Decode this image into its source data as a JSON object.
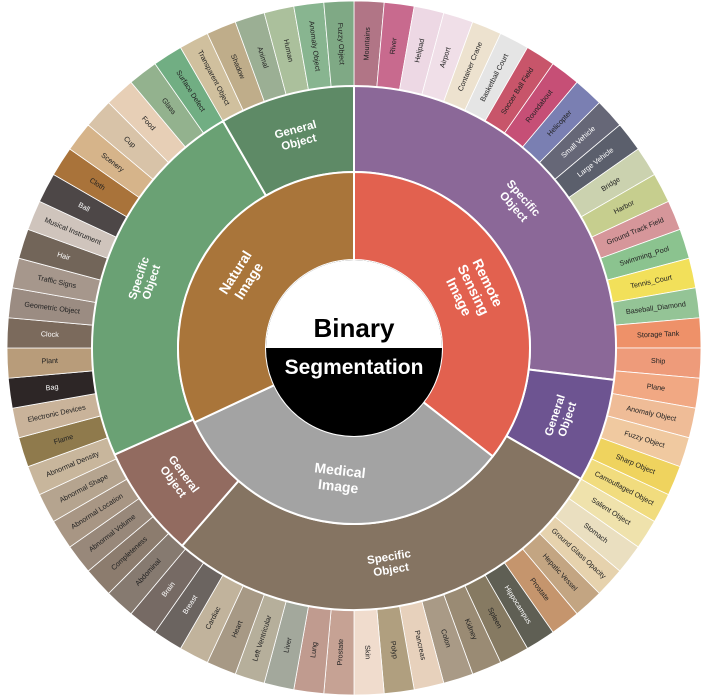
{
  "chart_data": {
    "type": "sunburst",
    "center": {
      "title_top": "Binary",
      "title_bottom": "Segmentation"
    },
    "rings": {
      "inner": [
        {
          "name": "Remote Sensing Image",
          "color": "#E2614F",
          "from": 0,
          "to": 128
        },
        {
          "name": "Medical Image",
          "color": "#A3A3A3",
          "from": 128,
          "to": 245
        },
        {
          "name": "Natural Image",
          "color": "#A9753A",
          "from": 245,
          "to": 360
        }
      ],
      "middle": [
        {
          "name": "Specific Object",
          "color": "#8B6898",
          "from": 0,
          "to": 97
        },
        {
          "name": "General Object",
          "color": "#6D5491",
          "from": 97,
          "to": 120
        },
        {
          "name": "Specific Object",
          "color": "#857462",
          "from": 120,
          "to": 221
        },
        {
          "name": "General Object",
          "color": "#926B60",
          "from": 221,
          "to": 246
        },
        {
          "name": "Specific Object",
          "color": "#6AA174",
          "from": 246,
          "to": 330
        },
        {
          "name": "General Object",
          "color": "#5E8A66",
          "from": 330,
          "to": 360
        }
      ],
      "outer": [
        {
          "name": "Mountains",
          "color": "#B17586",
          "from": 0,
          "to": 5
        },
        {
          "name": "River",
          "color": "#C86A8E",
          "from": 5,
          "to": 10
        },
        {
          "name": "Helipad",
          "color": "#EDD8E4",
          "from": 10,
          "to": 15
        },
        {
          "name": "Airport",
          "color": "#F0DFE8",
          "from": 15,
          "to": 20
        },
        {
          "name": "Container Crane",
          "color": "#EDE2CF",
          "from": 20,
          "to": 25
        },
        {
          "name": "Basketball Court",
          "color": "#E5E5E5",
          "from": 25,
          "to": 30
        },
        {
          "name": "Soccer Ball Field",
          "color": "#C8556A",
          "from": 30,
          "to": 35
        },
        {
          "name": "Roundabout",
          "color": "#C64F76",
          "from": 35,
          "to": 40
        },
        {
          "name": "Helicopter",
          "color": "#7A7FB2",
          "from": 40,
          "to": 45
        },
        {
          "name": "Small Vehicle",
          "color": "#666777",
          "from": 45,
          "to": 50
        },
        {
          "name": "Large Vehicle",
          "color": "#5B5F6C",
          "from": 50,
          "to": 55
        },
        {
          "name": "Bridge",
          "color": "#CBD2AF",
          "from": 55,
          "to": 60
        },
        {
          "name": "Harbor",
          "color": "#C6CE8E",
          "from": 60,
          "to": 65
        },
        {
          "name": "Ground Track Field",
          "color": "#D6969A",
          "from": 65,
          "to": 70
        },
        {
          "name": "Swimming_Pool",
          "color": "#8BC38F",
          "from": 70,
          "to": 75
        },
        {
          "name": "Tennis_Court",
          "color": "#F2E05A",
          "from": 75,
          "to": 80
        },
        {
          "name": "Baseball_Diamond",
          "color": "#94C496",
          "from": 80,
          "to": 85
        },
        {
          "name": "Storage Tank",
          "color": "#EE9169",
          "from": 85,
          "to": 90
        },
        {
          "name": "Ship",
          "color": "#EE9B7A",
          "from": 90,
          "to": 95
        },
        {
          "name": "Plane",
          "color": "#F1A883",
          "from": 95,
          "to": 100
        },
        {
          "name": "Anomaly Object",
          "color": "#EFBC97",
          "from": 100,
          "to": 105
        },
        {
          "name": "Fuzzy Object",
          "color": "#F0C9A0",
          "from": 105,
          "to": 110
        },
        {
          "name": "Sharp Object",
          "color": "#EFD35E",
          "from": 110,
          "to": 115
        },
        {
          "name": "Camouflaged Object",
          "color": "#F1DC7E",
          "from": 115,
          "to": 120
        },
        {
          "name": "Salient Object",
          "color": "#EFE2AC",
          "from": 120,
          "to": 125
        },
        {
          "name": "Stomach",
          "color": "#EADFC0",
          "from": 125,
          "to": 130
        },
        {
          "name": "Ground Glass Opacity",
          "color": "#E6D2AD",
          "from": 130,
          "to": 135
        },
        {
          "name": "Hepatic Vessel",
          "color": "#C3A582",
          "from": 135,
          "to": 140
        },
        {
          "name": "Prostate",
          "color": "#C5956D",
          "from": 140,
          "to": 145
        },
        {
          "name": "Hippocampus",
          "color": "#5F5F54",
          "from": 145,
          "to": 150
        },
        {
          "name": "Spleen",
          "color": "#867A62",
          "from": 150,
          "to": 155
        },
        {
          "name": "Kidney",
          "color": "#9A8B74",
          "from": 155,
          "to": 160
        },
        {
          "name": "Colon",
          "color": "#A99A86",
          "from": 160,
          "to": 165
        },
        {
          "name": "Pancreas",
          "color": "#E7D1BC",
          "from": 165,
          "to": 170
        },
        {
          "name": "Polyp",
          "color": "#B09F7F",
          "from": 170,
          "to": 175
        },
        {
          "name": "Skin",
          "color": "#F0DCCD",
          "from": 175,
          "to": 180
        },
        {
          "name": "Prostate",
          "color": "#C6A294",
          "from": 180,
          "to": 185
        },
        {
          "name": "Lung",
          "color": "#C09B8F",
          "from": 185,
          "to": 190
        },
        {
          "name": "Liver",
          "color": "#A3A89C",
          "from": 190,
          "to": 195
        },
        {
          "name": "Left Ventricular",
          "color": "#B6AF9B",
          "from": 195,
          "to": 200
        },
        {
          "name": "Heart",
          "color": "#A79985",
          "from": 200,
          "to": 205
        },
        {
          "name": "Cardiac",
          "color": "#C1B39C",
          "from": 205,
          "to": 210
        },
        {
          "name": "Breast",
          "color": "#6B6460",
          "from": 210,
          "to": 215
        },
        {
          "name": "Brain",
          "color": "#766A64",
          "from": 215,
          "to": 220
        },
        {
          "name": "Abdominal",
          "color": "#867A70",
          "from": 220,
          "to": 225
        },
        {
          "name": "Completeness",
          "color": "#8C7C6E",
          "from": 225,
          "to": 230
        },
        {
          "name": "Abnormal Volume",
          "color": "#98887A",
          "from": 230,
          "to": 235
        },
        {
          "name": "Abnormal Location",
          "color": "#A89684",
          "from": 235,
          "to": 240
        },
        {
          "name": "Abnormal Shape",
          "color": "#B5A48F",
          "from": 240,
          "to": 245
        },
        {
          "name": "Abnormal Density",
          "color": "#C8B69C",
          "from": 245,
          "to": 250
        },
        {
          "name": "Flame",
          "color": "#8F7A4C",
          "from": 250,
          "to": 255
        },
        {
          "name": "Electronic Devices",
          "color": "#C9B39A",
          "from": 255,
          "to": 260
        },
        {
          "name": "Bag",
          "color": "#2D2626",
          "from": 260,
          "to": 265
        },
        {
          "name": "Plant",
          "color": "#B89C7A",
          "from": 265,
          "to": 270
        },
        {
          "name": "Clock",
          "color": "#7B6A5C",
          "from": 270,
          "to": 275
        },
        {
          "name": "Geometric Object",
          "color": "#9B8C82",
          "from": 275,
          "to": 280
        },
        {
          "name": "Traffic Signs",
          "color": "#A6978C",
          "from": 280,
          "to": 285
        },
        {
          "name": "Hair",
          "color": "#726559",
          "from": 285,
          "to": 290
        },
        {
          "name": "Musical Instrument",
          "color": "#CFC4BC",
          "from": 290,
          "to": 295
        },
        {
          "name": "Ball",
          "color": "#4D4747",
          "from": 295,
          "to": 300
        },
        {
          "name": "Cloth",
          "color": "#A9733A",
          "from": 300,
          "to": 305
        },
        {
          "name": "Scenery",
          "color": "#D6B48A",
          "from": 305,
          "to": 310
        },
        {
          "name": "Cup",
          "color": "#D8C3A8",
          "from": 310,
          "to": 315
        },
        {
          "name": "Food",
          "color": "#E7CFB6",
          "from": 315,
          "to": 320
        },
        {
          "name": "Glass",
          "color": "#93B28E",
          "from": 320,
          "to": 325
        },
        {
          "name": "Surface Defect",
          "color": "#71AE83",
          "from": 325,
          "to": 330
        },
        {
          "name": "Transparent Object",
          "color": "#D0C09E",
          "from": 330,
          "to": 335
        },
        {
          "name": "Shadow",
          "color": "#BFAD8A",
          "from": 335,
          "to": 340
        },
        {
          "name": "Animal",
          "color": "#9BAF94",
          "from": 340,
          "to": 345
        },
        {
          "name": "Human",
          "color": "#ABC09C",
          "from": 345,
          "to": 350
        },
        {
          "name": "Anomaly Object",
          "color": "#88B590",
          "from": 350,
          "to": 355
        },
        {
          "name": "Fuzzy Object",
          "color": "#7FA985",
          "from": 355,
          "to": 360
        }
      ]
    }
  }
}
